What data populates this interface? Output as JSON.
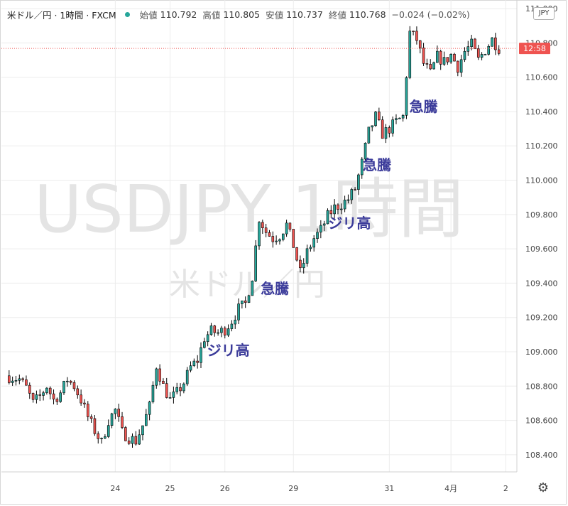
{
  "header": {
    "symbol": "米ドル／円 · 1時間 · FXCM",
    "open_label": "始値",
    "open_value": "110.792",
    "high_label": "高値",
    "high_value": "110.805",
    "low_label": "安値",
    "low_value": "110.737",
    "close_label": "終値",
    "close_value": "110.768",
    "change": "−0.024 (−0.02%)",
    "currency": "JPY"
  },
  "watermark": {
    "main": "USDJPY 1時間",
    "sub": "米ドル／円"
  },
  "price_tag": {
    "label": "12:58",
    "value": 110.768,
    "color": "#ef5350"
  },
  "colors": {
    "up": "#26a69a",
    "down": "#ef5350",
    "wick": "#000000",
    "annotation": "#3b3b9a",
    "grid": "#ececec"
  },
  "icons": {
    "settings": "gear-icon",
    "status": "status-dot-icon"
  },
  "chart_data": {
    "type": "candlestick",
    "ylim": [
      108.3,
      111.05
    ],
    "yticks": [
      "108.400",
      "108.600",
      "108.800",
      "109.000",
      "109.200",
      "109.400",
      "109.600",
      "109.800",
      "110.000",
      "110.200",
      "110.400",
      "110.600",
      "110.800",
      "111.000"
    ],
    "xticks": [
      {
        "label": "24",
        "t": 16
      },
      {
        "label": "25",
        "t": 24
      },
      {
        "label": "26",
        "t": 32
      },
      {
        "label": "29",
        "t": 42
      },
      {
        "label": "31",
        "t": 56
      },
      {
        "label": "4月",
        "t": 65
      },
      {
        "label": "2",
        "t": 73
      }
    ],
    "x_range": [
      0,
      74
    ],
    "close_path": [
      [
        0,
        108.86
      ],
      [
        2,
        108.84
      ],
      [
        3,
        108.79
      ],
      [
        4,
        108.7
      ],
      [
        5,
        108.74
      ],
      [
        6,
        108.8
      ],
      [
        7,
        108.72
      ],
      [
        8,
        108.76
      ],
      [
        9,
        108.84
      ],
      [
        10,
        108.8
      ],
      [
        11,
        108.72
      ],
      [
        12,
        108.62
      ],
      [
        13,
        108.54
      ],
      [
        14,
        108.47
      ],
      [
        15,
        108.6
      ],
      [
        16,
        108.66
      ],
      [
        17,
        108.53
      ],
      [
        18,
        108.5
      ],
      [
        19,
        108.48
      ],
      [
        20,
        108.57
      ],
      [
        21,
        108.68
      ],
      [
        22,
        108.92
      ],
      [
        23,
        108.8
      ],
      [
        24,
        108.72
      ],
      [
        25,
        108.76
      ],
      [
        26,
        108.82
      ],
      [
        27,
        108.91
      ],
      [
        28,
        108.95
      ],
      [
        29,
        109.08
      ],
      [
        30,
        109.12
      ],
      [
        31,
        109.11
      ],
      [
        32,
        109.13
      ],
      [
        33,
        109.18
      ],
      [
        34,
        109.25
      ],
      [
        35,
        109.28
      ],
      [
        36,
        109.44
      ],
      [
        37,
        109.78
      ],
      [
        38,
        109.7
      ],
      [
        39,
        109.66
      ],
      [
        40,
        109.68
      ],
      [
        41,
        109.74
      ],
      [
        42,
        109.62
      ],
      [
        43,
        109.46
      ],
      [
        44,
        109.58
      ],
      [
        45,
        109.66
      ],
      [
        46,
        109.71
      ],
      [
        47,
        109.79
      ],
      [
        48,
        109.84
      ],
      [
        49,
        109.86
      ],
      [
        50,
        109.89
      ],
      [
        51,
        109.95
      ],
      [
        52,
        110.1
      ],
      [
        53,
        110.28
      ],
      [
        54,
        110.37
      ],
      [
        55,
        110.27
      ],
      [
        56,
        110.3
      ],
      [
        57,
        110.34
      ],
      [
        58,
        110.37
      ],
      [
        59,
        110.86
      ],
      [
        60,
        110.82
      ],
      [
        61,
        110.68
      ],
      [
        62,
        110.62
      ],
      [
        63,
        110.72
      ],
      [
        64,
        110.69
      ],
      [
        65,
        110.73
      ],
      [
        66,
        110.66
      ],
      [
        67,
        110.75
      ],
      [
        68,
        110.79
      ],
      [
        69,
        110.7
      ],
      [
        70,
        110.76
      ],
      [
        71,
        110.82
      ],
      [
        72,
        110.77
      ]
    ],
    "annotations": [
      {
        "text": "ジリ高",
        "t": 32.5,
        "y": 108.98
      },
      {
        "text": "急騰",
        "t": 39.3,
        "y": 109.34
      },
      {
        "text": "ジリ高",
        "t": 50.2,
        "y": 109.72
      },
      {
        "text": "急騰",
        "t": 54.2,
        "y": 110.06
      },
      {
        "text": "急騰",
        "t": 61.0,
        "y": 110.4
      }
    ]
  }
}
